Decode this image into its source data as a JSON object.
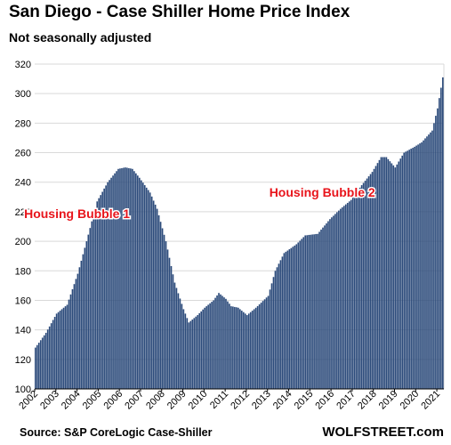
{
  "chart_data": {
    "type": "bar",
    "title": "San Diego - Case Shiller Home Price Index",
    "subtitle": "Not seasonally adjusted",
    "xlabel": "",
    "ylabel": "",
    "ylim": [
      100,
      320
    ],
    "yticks": [
      100,
      120,
      140,
      160,
      180,
      200,
      220,
      240,
      260,
      280,
      300,
      320
    ],
    "xticks": [
      "2002",
      "2003",
      "2004",
      "2005",
      "2006",
      "2007",
      "2008",
      "2009",
      "2010",
      "2011",
      "2012",
      "2013",
      "2014",
      "2015",
      "2016",
      "2017",
      "2018",
      "2019",
      "2020",
      "2021"
    ],
    "grid": true,
    "bar_color": "#2b4a7a",
    "annotation_color": "#e8141b",
    "annotations": [
      {
        "text": "Housing Bubble 1",
        "date": "2004-01"
      },
      {
        "text": "Housing Bubble 2",
        "date": "2015-08"
      }
    ],
    "start_month": "2002-01",
    "anchors": [
      [
        "2002-01",
        128
      ],
      [
        "2002-07",
        138
      ],
      [
        "2003-01",
        151
      ],
      [
        "2003-07",
        157
      ],
      [
        "2004-01",
        178
      ],
      [
        "2004-06",
        200
      ],
      [
        "2004-12",
        227
      ],
      [
        "2005-06",
        240
      ],
      [
        "2005-12",
        249
      ],
      [
        "2006-04",
        250
      ],
      [
        "2006-08",
        249
      ],
      [
        "2006-12",
        243
      ],
      [
        "2007-06",
        233
      ],
      [
        "2007-10",
        222
      ],
      [
        "2008-03",
        200
      ],
      [
        "2008-08",
        172
      ],
      [
        "2009-01",
        154
      ],
      [
        "2009-04",
        145
      ],
      [
        "2009-09",
        150
      ],
      [
        "2010-01",
        155
      ],
      [
        "2010-06",
        160
      ],
      [
        "2010-09",
        165
      ],
      [
        "2011-01",
        161
      ],
      [
        "2011-04",
        156
      ],
      [
        "2011-08",
        155
      ],
      [
        "2012-01",
        150
      ],
      [
        "2012-06",
        155
      ],
      [
        "2013-01",
        163
      ],
      [
        "2013-05",
        180
      ],
      [
        "2013-10",
        192
      ],
      [
        "2014-05",
        198
      ],
      [
        "2014-10",
        204
      ],
      [
        "2015-05",
        205
      ],
      [
        "2015-12",
        215
      ],
      [
        "2016-06",
        222
      ],
      [
        "2016-12",
        228
      ],
      [
        "2017-06",
        238
      ],
      [
        "2017-12",
        247
      ],
      [
        "2018-05",
        257
      ],
      [
        "2018-08",
        257
      ],
      [
        "2019-01",
        250
      ],
      [
        "2019-06",
        260
      ],
      [
        "2019-12",
        264
      ],
      [
        "2020-04",
        267
      ],
      [
        "2020-10",
        275
      ],
      [
        "2021-01",
        290
      ],
      [
        "2021-04",
        311
      ]
    ]
  },
  "footer": {
    "source": "Source: S&P CoreLogic Case-Shiller",
    "brand": "WOLFSTREET.com"
  }
}
